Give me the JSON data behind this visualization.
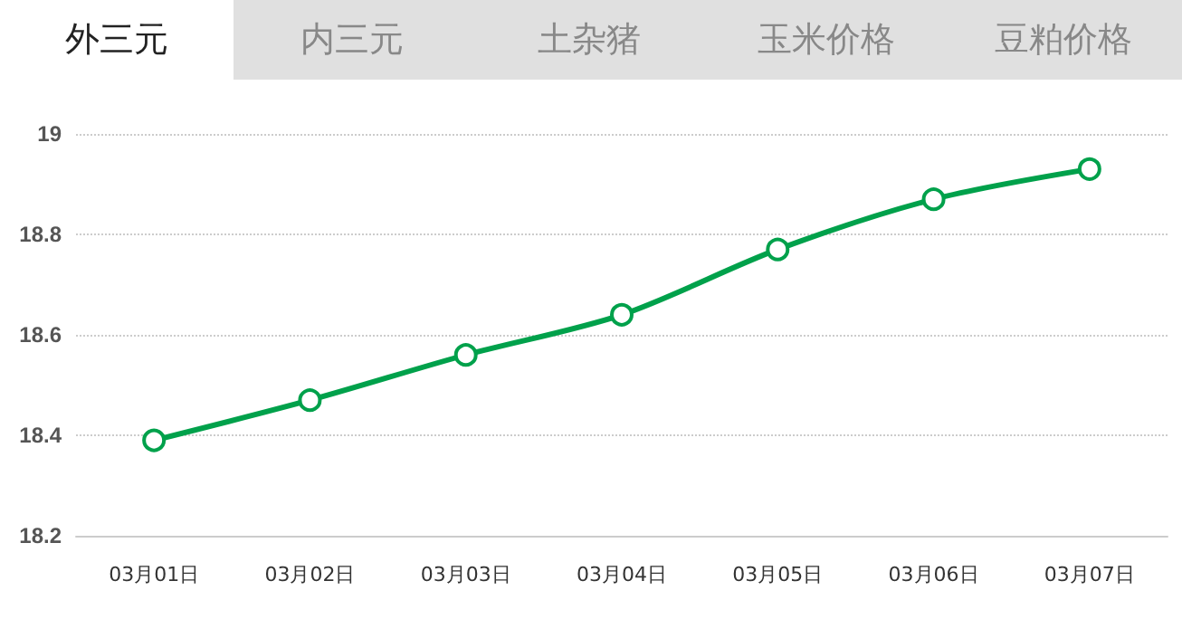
{
  "chart_data": {
    "type": "line",
    "title": "外三元",
    "annotations": [
      "内三元",
      "土杂猪",
      "玉米价格",
      "豆粕价格"
    ],
    "categories": [
      "03月01日",
      "03月02日",
      "03月03日",
      "03月04日",
      "03月05日",
      "03月06日",
      "03月07日"
    ],
    "series": [
      {
        "color": "#00a14b",
        "values": [
          18.39,
          18.47,
          18.56,
          18.64,
          18.77,
          18.87,
          18.93
        ]
      }
    ],
    "ylim": [
      18.2,
      19
    ],
    "yticks": [
      18.2,
      18.4,
      18.6,
      18.8,
      19
    ],
    "grid": "y",
    "marker": "circle",
    "line_style": "solid"
  }
}
